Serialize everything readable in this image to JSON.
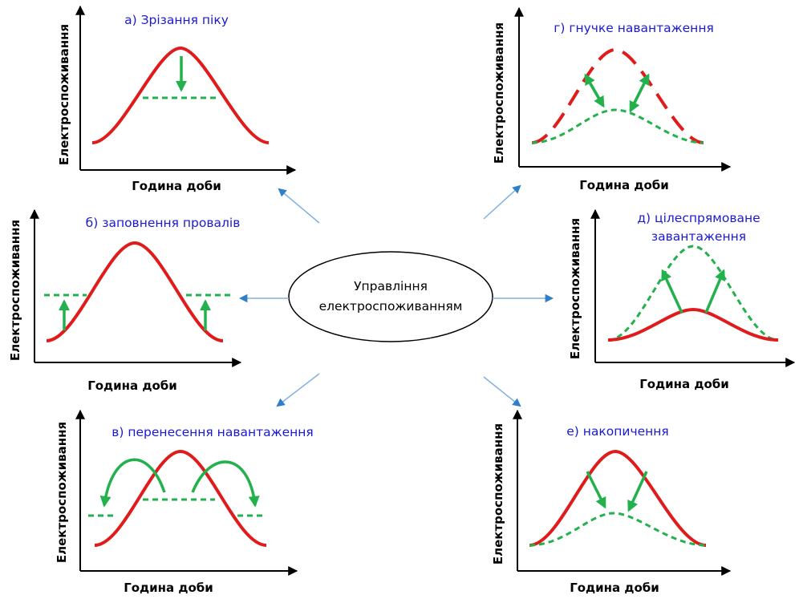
{
  "center": {
    "line1": "Управління",
    "line2": "електроспоживанням"
  },
  "axes": {
    "y_label": "Електроспоживання",
    "x_label": "Година доби"
  },
  "panels": {
    "a": {
      "title": "а) Зрізання піку"
    },
    "b": {
      "title": "б) заповнення провалів"
    },
    "v": {
      "title": "в) перенесення навантаження"
    },
    "g": {
      "title": "г) гнучке навантаження"
    },
    "d": {
      "title_line1": "д) цілеспрямоване",
      "title_line2": "завантаження"
    },
    "e": {
      "title": "е) накопичення"
    }
  },
  "colors": {
    "load_curve": "#e01b1b",
    "modified_curve": "#22b14c",
    "title_text": "#1a1ad6",
    "connector": "#4a90d0"
  }
}
